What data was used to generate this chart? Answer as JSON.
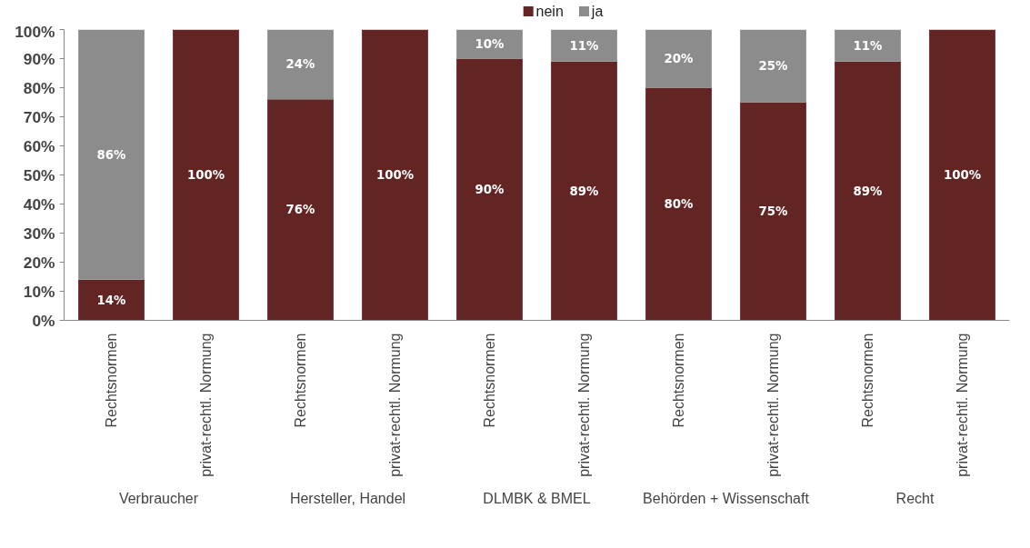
{
  "chart_data": {
    "type": "bar",
    "stacked": true,
    "categories": [
      "Rechtsnormen",
      "privat-rechtl. Normung",
      "Rechtsnormen",
      "privat-rechtl. Normung",
      "Rechtsnormen",
      "privat-rechtl. Normung",
      "Rechtsnormen",
      "privat-rechtl. Normung",
      "Rechtsnormen",
      "privat-rechtl. Normung"
    ],
    "series": [
      {
        "name": "nein",
        "color": "#632523",
        "values": [
          14,
          100,
          76,
          100,
          90,
          89,
          80,
          75,
          89,
          100
        ],
        "value_labels": [
          "14%",
          "100%",
          "76%",
          "100%",
          "90%",
          "89%",
          "80%",
          "75%",
          "89%",
          "100%"
        ]
      },
      {
        "name": "ja",
        "color": "#8c8c8c",
        "values": [
          86,
          0,
          24,
          0,
          10,
          11,
          20,
          25,
          11,
          0
        ],
        "value_labels": [
          "86%",
          null,
          "24%",
          null,
          "10%",
          "11%",
          "20%",
          "25%",
          "11%",
          null
        ]
      }
    ],
    "annotations": [
      "Verbraucher",
      "Hersteller, Handel",
      "DLMBK & BMEL",
      "Behörden + Wissenschaft",
      "Recht"
    ],
    "ylim": [
      0,
      100
    ],
    "yticks": [
      {
        "value": 0,
        "label": "0%"
      },
      {
        "value": 10,
        "label": "10%"
      },
      {
        "value": 20,
        "label": "20%"
      },
      {
        "value": 30,
        "label": "30%"
      },
      {
        "value": 40,
        "label": "40%"
      },
      {
        "value": 50,
        "label": "50%"
      },
      {
        "value": 60,
        "label": "60%"
      },
      {
        "value": 70,
        "label": "70%"
      },
      {
        "value": 80,
        "label": "80%"
      },
      {
        "value": 90,
        "label": "90%"
      },
      {
        "value": 100,
        "label": "100%"
      }
    ],
    "legend": "top",
    "grid": false
  }
}
